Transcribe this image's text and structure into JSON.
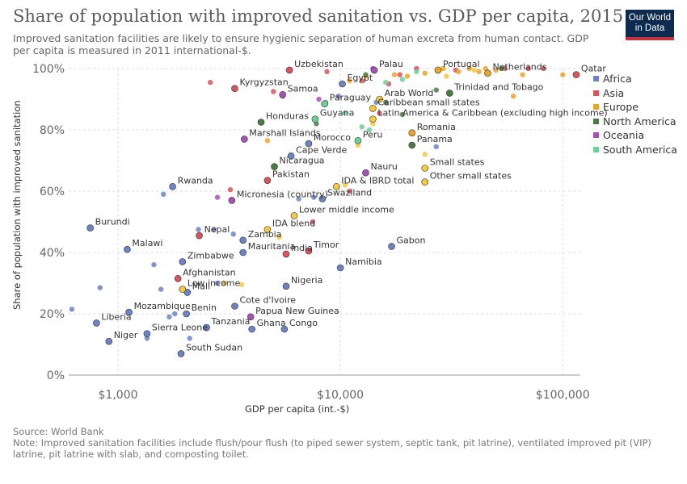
{
  "header": {
    "title": "Share of population with improved sanitation vs. GDP per capita, 2015",
    "subtitle": "Improved sanitation facilities are likely to ensure hygienic separation of human excreta from human contact. GDP per capita is measured in 2011 international-$.",
    "logo_line1": "Our World",
    "logo_line2": "in Data"
  },
  "footer": {
    "source": "Source: World Bank",
    "note": "Note: Improved sanitation facilities include flush/pour flush (to piped sewer system, septic tank, pit latrine), ventilated improved pit (VIP) latrine, pit latrine with slab, and composting toilet."
  },
  "colors": {
    "Africa": "#6d83c4",
    "Asia": "#d9545e",
    "Europe": "#e9a62a",
    "North America": "#4c7a44",
    "Oceania": "#a653b6",
    "South America": "#6fcf97",
    "Aggregate": "#f5c842"
  },
  "chart_data": {
    "type": "scatter",
    "title": "Share of population with improved sanitation vs. GDP per capita, 2015",
    "xlabel": "GDP per capita (int.-$)",
    "ylabel": "Share of population with improved sanitation",
    "x_scale": "log",
    "xlim": [
      600,
      120000
    ],
    "ylim": [
      0,
      100
    ],
    "x_ticks": [
      1000,
      10000,
      100000
    ],
    "x_tick_labels": [
      "$1,000",
      "$10,000",
      "$100,000"
    ],
    "y_ticks": [
      0,
      20,
      40,
      60,
      80,
      100
    ],
    "y_tick_labels": [
      "0%",
      "20%",
      "40%",
      "60%",
      "80%",
      "100%"
    ],
    "grid": true,
    "legend_position": "right",
    "legend": [
      "Africa",
      "Asia",
      "Europe",
      "North America",
      "Oceania",
      "South America"
    ],
    "labeled_points": [
      {
        "label": "Burundi",
        "x": 750,
        "y": 48,
        "group": "Africa"
      },
      {
        "label": "Malawi",
        "x": 1100,
        "y": 41,
        "group": "Africa"
      },
      {
        "label": "Liberia",
        "x": 800,
        "y": 17,
        "group": "Africa"
      },
      {
        "label": "Niger",
        "x": 910,
        "y": 11,
        "group": "Africa"
      },
      {
        "label": "Mozambique",
        "x": 1120,
        "y": 20.5,
        "group": "Africa"
      },
      {
        "label": "Sierra Leone",
        "x": 1350,
        "y": 13.5,
        "group": "Africa"
      },
      {
        "label": "Benin",
        "x": 2030,
        "y": 20,
        "group": "Africa"
      },
      {
        "label": "Mali",
        "x": 2050,
        "y": 27,
        "group": "Africa"
      },
      {
        "label": "South Sudan",
        "x": 1920,
        "y": 7,
        "group": "Africa"
      },
      {
        "label": "Rwanda",
        "x": 1760,
        "y": 61.5,
        "group": "Africa"
      },
      {
        "label": "Tanzania",
        "x": 2500,
        "y": 15.5,
        "group": "Africa"
      },
      {
        "label": "Zimbabwe",
        "x": 1950,
        "y": 37,
        "group": "Africa"
      },
      {
        "label": "Low income",
        "x": 1950,
        "y": 28,
        "group": "Aggregate"
      },
      {
        "label": "Afghanistan",
        "x": 1860,
        "y": 31.5,
        "group": "Asia"
      },
      {
        "label": "Nepal",
        "x": 2320,
        "y": 45.5,
        "group": "Asia"
      },
      {
        "label": "Zambia",
        "x": 3650,
        "y": 44,
        "group": "Africa"
      },
      {
        "label": "Mauritania",
        "x": 3650,
        "y": 40,
        "group": "Africa"
      },
      {
        "label": "IDA blend",
        "x": 4700,
        "y": 47.5,
        "group": "Aggregate"
      },
      {
        "label": "Cote d'Ivoire",
        "x": 3350,
        "y": 22.5,
        "group": "Africa"
      },
      {
        "label": "Papua New Guinea",
        "x": 3950,
        "y": 19,
        "group": "Oceania"
      },
      {
        "label": "Ghana",
        "x": 4000,
        "y": 15,
        "group": "Africa"
      },
      {
        "label": "Congo",
        "x": 5600,
        "y": 15,
        "group": "Africa"
      },
      {
        "label": "Nigeria",
        "x": 5700,
        "y": 29,
        "group": "Africa"
      },
      {
        "label": "India",
        "x": 5700,
        "y": 39.5,
        "group": "Asia"
      },
      {
        "label": "Timor",
        "x": 7200,
        "y": 40.5,
        "group": "Asia"
      },
      {
        "label": "Lower middle income",
        "x": 6200,
        "y": 52,
        "group": "Aggregate"
      },
      {
        "label": "Pakistan",
        "x": 4700,
        "y": 63.5,
        "group": "Asia"
      },
      {
        "label": "Micronesia (country)",
        "x": 3250,
        "y": 57,
        "group": "Oceania"
      },
      {
        "label": "Nicaragua",
        "x": 5050,
        "y": 68,
        "group": "North America"
      },
      {
        "label": "Cape Verde",
        "x": 6000,
        "y": 71.5,
        "group": "Africa"
      },
      {
        "label": "Marshall Islands",
        "x": 3700,
        "y": 77,
        "group": "Oceania"
      },
      {
        "label": "Morocco",
        "x": 7200,
        "y": 75.5,
        "group": "Africa"
      },
      {
        "label": "Honduras",
        "x": 4400,
        "y": 82.5,
        "group": "North America"
      },
      {
        "label": "Guyana",
        "x": 7700,
        "y": 83.5,
        "group": "South America"
      },
      {
        "label": "Kyrgyzstan",
        "x": 3350,
        "y": 93.5,
        "group": "Asia"
      },
      {
        "label": "Samoa",
        "x": 5500,
        "y": 91.5,
        "group": "Oceania"
      },
      {
        "label": "Uzbekistan",
        "x": 5900,
        "y": 99.5,
        "group": "Asia"
      },
      {
        "label": "Egypt",
        "x": 10200,
        "y": 95,
        "group": "Africa"
      },
      {
        "label": "Paraguay",
        "x": 8500,
        "y": 88.5,
        "group": "South America"
      },
      {
        "label": "Palau",
        "x": 14200,
        "y": 99.5,
        "group": "Oceania"
      },
      {
        "label": "Peru",
        "x": 12000,
        "y": 76.5,
        "group": "South America"
      },
      {
        "label": "Swaziland",
        "x": 8300,
        "y": 57.5,
        "group": "Africa"
      },
      {
        "label": "IDA & IBRD total",
        "x": 9600,
        "y": 61.5,
        "group": "Aggregate"
      },
      {
        "label": "Nauru",
        "x": 13000,
        "y": 66,
        "group": "Oceania"
      },
      {
        "label": "Namibia",
        "x": 10000,
        "y": 35,
        "group": "Africa"
      },
      {
        "label": "Gabon",
        "x": 17000,
        "y": 42,
        "group": "Africa"
      },
      {
        "label": "Small states",
        "x": 24000,
        "y": 67.5,
        "group": "Aggregate"
      },
      {
        "label": "Other small states",
        "x": 24000,
        "y": 63,
        "group": "Aggregate"
      },
      {
        "label": "Panama",
        "x": 21000,
        "y": 75,
        "group": "North America"
      },
      {
        "label": "Romania",
        "x": 21000,
        "y": 79,
        "group": "Europe"
      },
      {
        "label": "Latin America & Caribbean (excluding high income)",
        "x": 14000,
        "y": 83.5,
        "group": "Aggregate"
      },
      {
        "label": "Caribbean small states",
        "x": 14000,
        "y": 87,
        "group": "Aggregate"
      },
      {
        "label": "Arab World",
        "x": 15000,
        "y": 90,
        "group": "Aggregate"
      },
      {
        "label": "Trinidad and Tobago",
        "x": 31000,
        "y": 92,
        "group": "North America"
      },
      {
        "label": "Portugal",
        "x": 27500,
        "y": 99.5,
        "group": "Europe"
      },
      {
        "label": "Netherlands",
        "x": 46000,
        "y": 98.5,
        "group": "Europe"
      },
      {
        "label": "Qatar",
        "x": 115000,
        "y": 98,
        "group": "Asia"
      }
    ],
    "other_points": [
      {
        "x": 620,
        "y": 21.5,
        "group": "Africa"
      },
      {
        "x": 830,
        "y": 28.5,
        "group": "Africa"
      },
      {
        "x": 1350,
        "y": 12,
        "group": "Africa"
      },
      {
        "x": 1450,
        "y": 36,
        "group": "Africa"
      },
      {
        "x": 1560,
        "y": 28,
        "group": "Africa"
      },
      {
        "x": 1600,
        "y": 59,
        "group": "Africa"
      },
      {
        "x": 1700,
        "y": 19,
        "group": "Africa"
      },
      {
        "x": 1800,
        "y": 20,
        "group": "Africa"
      },
      {
        "x": 2100,
        "y": 12,
        "group": "Africa"
      },
      {
        "x": 2300,
        "y": 47.5,
        "group": "Africa"
      },
      {
        "x": 2800,
        "y": 30,
        "group": "Africa"
      },
      {
        "x": 2700,
        "y": 47.5,
        "group": "Africa"
      },
      {
        "x": 3300,
        "y": 46,
        "group": "Africa"
      },
      {
        "x": 3000,
        "y": 30,
        "group": "Africa"
      },
      {
        "x": 6500,
        "y": 57.5,
        "group": "Africa"
      },
      {
        "x": 7600,
        "y": 58,
        "group": "Africa"
      },
      {
        "x": 9800,
        "y": 91,
        "group": "Africa"
      },
      {
        "x": 14500,
        "y": 89,
        "group": "Africa"
      },
      {
        "x": 27000,
        "y": 74.5,
        "group": "Africa"
      },
      {
        "x": 2600,
        "y": 95.5,
        "group": "Asia"
      },
      {
        "x": 3200,
        "y": 60.5,
        "group": "Asia"
      },
      {
        "x": 5000,
        "y": 92.5,
        "group": "Asia"
      },
      {
        "x": 7500,
        "y": 50,
        "group": "Asia"
      },
      {
        "x": 8700,
        "y": 99,
        "group": "Asia"
      },
      {
        "x": 11000,
        "y": 60,
        "group": "Asia"
      },
      {
        "x": 12500,
        "y": 96,
        "group": "Asia"
      },
      {
        "x": 15000,
        "y": 85.5,
        "group": "Asia"
      },
      {
        "x": 16500,
        "y": 95,
        "group": "Asia"
      },
      {
        "x": 18500,
        "y": 98,
        "group": "Asia"
      },
      {
        "x": 22000,
        "y": 100,
        "group": "Asia"
      },
      {
        "x": 33000,
        "y": 99.5,
        "group": "Asia"
      },
      {
        "x": 55000,
        "y": 100,
        "group": "Asia"
      },
      {
        "x": 70000,
        "y": 100,
        "group": "Asia"
      },
      {
        "x": 82000,
        "y": 100,
        "group": "Asia"
      },
      {
        "x": 4700,
        "y": 76.5,
        "group": "Europe"
      },
      {
        "x": 11000,
        "y": 96,
        "group": "Europe"
      },
      {
        "x": 13000,
        "y": 97.5,
        "group": "Europe"
      },
      {
        "x": 17500,
        "y": 98,
        "group": "Europe"
      },
      {
        "x": 20000,
        "y": 97.5,
        "group": "Europe"
      },
      {
        "x": 24000,
        "y": 98.5,
        "group": "Europe"
      },
      {
        "x": 29000,
        "y": 100,
        "group": "Europe"
      },
      {
        "x": 34000,
        "y": 99,
        "group": "Europe"
      },
      {
        "x": 38000,
        "y": 100,
        "group": "Europe"
      },
      {
        "x": 42000,
        "y": 99,
        "group": "Europe"
      },
      {
        "x": 45000,
        "y": 100,
        "group": "Europe"
      },
      {
        "x": 50000,
        "y": 99.5,
        "group": "Europe"
      },
      {
        "x": 60000,
        "y": 91,
        "group": "Europe"
      },
      {
        "x": 66000,
        "y": 98,
        "group": "Europe"
      },
      {
        "x": 100000,
        "y": 98,
        "group": "Europe"
      },
      {
        "x": 7800,
        "y": 82,
        "group": "North America"
      },
      {
        "x": 13000,
        "y": 98,
        "group": "North America"
      },
      {
        "x": 16000,
        "y": 89,
        "group": "North America"
      },
      {
        "x": 19000,
        "y": 85,
        "group": "North America"
      },
      {
        "x": 27000,
        "y": 93,
        "group": "North America"
      },
      {
        "x": 53000,
        "y": 100,
        "group": "North America"
      },
      {
        "x": 5500,
        "y": 91,
        "group": "Oceania"
      },
      {
        "x": 2800,
        "y": 58,
        "group": "Oceania"
      },
      {
        "x": 8000,
        "y": 90,
        "group": "Oceania"
      },
      {
        "x": 14000,
        "y": 100,
        "group": "Oceania"
      },
      {
        "x": 8600,
        "y": 89,
        "group": "South America"
      },
      {
        "x": 10500,
        "y": 85.5,
        "group": "South America"
      },
      {
        "x": 12500,
        "y": 81,
        "group": "South America"
      },
      {
        "x": 16000,
        "y": 95.5,
        "group": "South America"
      },
      {
        "x": 19000,
        "y": 96.5,
        "group": "South America"
      },
      {
        "x": 22000,
        "y": 99,
        "group": "South America"
      },
      {
        "x": 13500,
        "y": 80,
        "group": "South America"
      },
      {
        "x": 3000,
        "y": 30,
        "group": "Aggregate"
      },
      {
        "x": 3600,
        "y": 29.5,
        "group": "Aggregate"
      },
      {
        "x": 5300,
        "y": 45,
        "group": "Aggregate"
      },
      {
        "x": 12000,
        "y": 75,
        "group": "Aggregate"
      },
      {
        "x": 14000,
        "y": 82,
        "group": "Aggregate"
      },
      {
        "x": 10500,
        "y": 62,
        "group": "Aggregate"
      },
      {
        "x": 24000,
        "y": 72,
        "group": "Aggregate"
      },
      {
        "x": 30000,
        "y": 97.5,
        "group": "Aggregate"
      },
      {
        "x": 40000,
        "y": 99.5,
        "group": "Aggregate"
      }
    ]
  },
  "legend_labels": [
    "Africa",
    "Asia",
    "Europe",
    "North America",
    "Oceania",
    "South America"
  ]
}
